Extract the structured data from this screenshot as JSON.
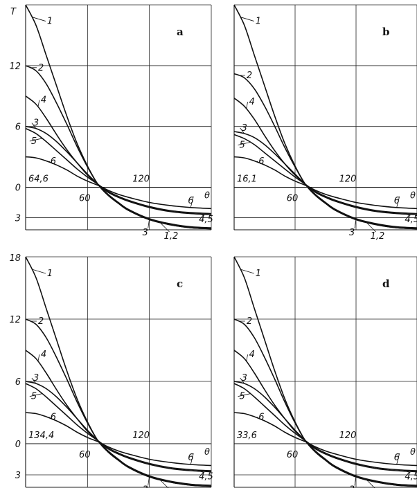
{
  "chart_data": [
    {
      "type": "line",
      "panel_label": "a",
      "y_axis_symbol": "T",
      "x_axis_symbol": "θ",
      "corner_value": "64,6",
      "x_ticks": [
        {
          "value": 60,
          "label": "60"
        },
        {
          "value": 120,
          "label": "120"
        }
      ],
      "y_ticks": [
        {
          "value": 12,
          "label": "12"
        },
        {
          "value": 6,
          "label": "6"
        },
        {
          "value": 0,
          "label": "0"
        },
        {
          "value": -3,
          "label": "3"
        }
      ],
      "xlim": [
        0,
        180
      ],
      "ylim": [
        -4.2,
        18
      ],
      "grid": true,
      "series": [
        {
          "name": "1",
          "x": [
            0,
            10,
            20,
            30,
            40,
            50,
            60,
            70,
            80,
            90,
            100,
            120,
            140,
            160,
            180
          ],
          "y": [
            18,
            16,
            13,
            10,
            7,
            4.3,
            2.1,
            0.3,
            -0.8,
            -1.6,
            -2.3,
            -3.2,
            -3.7,
            -4.0,
            -4.1
          ]
        },
        {
          "name": "2",
          "x": [
            0,
            10,
            20,
            30,
            40,
            50,
            60,
            70,
            80,
            90,
            100,
            120,
            140,
            160,
            180
          ],
          "y": [
            12,
            11.5,
            10.2,
            8.3,
            6.2,
            4.0,
            2.0,
            0.3,
            -0.8,
            -1.6,
            -2.3,
            -3.2,
            -3.7,
            -4.0,
            -4.1
          ]
        },
        {
          "name": "3",
          "x": [
            0,
            10,
            20,
            30,
            40,
            50,
            60,
            70,
            80,
            90,
            100,
            120,
            140,
            160,
            180
          ],
          "y": [
            6,
            5.8,
            5.3,
            4.5,
            3.5,
            2.4,
            1.3,
            0.3,
            -0.7,
            -1.5,
            -2.2,
            -3.1,
            -3.6,
            -3.9,
            -4.0
          ]
        },
        {
          "name": "4",
          "x": [
            0,
            10,
            20,
            30,
            40,
            50,
            60,
            70,
            80,
            90,
            100,
            120,
            140,
            160,
            180
          ],
          "y": [
            9,
            8.2,
            6.8,
            5.2,
            3.7,
            2.4,
            1.2,
            0.3,
            -0.5,
            -1.0,
            -1.4,
            -2.0,
            -2.4,
            -2.6,
            -2.7
          ]
        },
        {
          "name": "5",
          "x": [
            0,
            10,
            20,
            30,
            40,
            50,
            60,
            70,
            80,
            90,
            100,
            120,
            140,
            160,
            180
          ],
          "y": [
            5.8,
            5.3,
            4.5,
            3.6,
            2.7,
            1.8,
            1.0,
            0.3,
            -0.4,
            -0.9,
            -1.3,
            -1.9,
            -2.3,
            -2.5,
            -2.6
          ]
        },
        {
          "name": "6",
          "x": [
            0,
            10,
            20,
            30,
            40,
            50,
            60,
            70,
            80,
            90,
            100,
            120,
            140,
            160,
            180
          ],
          "y": [
            3,
            2.9,
            2.6,
            2.2,
            1.7,
            1.1,
            0.6,
            0.2,
            -0.3,
            -0.7,
            -1.0,
            -1.5,
            -1.8,
            -2.0,
            -2.1
          ]
        }
      ]
    },
    {
      "type": "line",
      "panel_label": "b",
      "y_axis_symbol": "",
      "x_axis_symbol": "θ",
      "corner_value": "16,1",
      "x_ticks": [
        {
          "value": 60,
          "label": "60"
        },
        {
          "value": 120,
          "label": "120"
        }
      ],
      "y_ticks": [],
      "xlim": [
        0,
        180
      ],
      "ylim": [
        -4.2,
        18
      ],
      "grid": true,
      "series": [
        {
          "name": "1",
          "x": [
            0,
            10,
            20,
            30,
            40,
            50,
            60,
            70,
            80,
            90,
            100,
            120,
            140,
            160,
            180
          ],
          "y": [
            18,
            16,
            13,
            10,
            7,
            4.3,
            2.1,
            0.3,
            -0.8,
            -1.6,
            -2.3,
            -3.2,
            -3.7,
            -4.0,
            -4.1
          ]
        },
        {
          "name": "2",
          "x": [
            0,
            10,
            20,
            30,
            40,
            50,
            60,
            70,
            80,
            90,
            100,
            120,
            140,
            160,
            180
          ],
          "y": [
            11.2,
            10.8,
            9.7,
            8.0,
            6.0,
            3.9,
            2.0,
            0.3,
            -0.8,
            -1.6,
            -2.3,
            -3.2,
            -3.7,
            -4.0,
            -4.1
          ]
        },
        {
          "name": "3",
          "x": [
            0,
            10,
            20,
            30,
            40,
            50,
            60,
            70,
            80,
            90,
            100,
            120,
            140,
            160,
            180
          ],
          "y": [
            5.5,
            5.3,
            4.9,
            4.2,
            3.3,
            2.3,
            1.3,
            0.3,
            -0.7,
            -1.5,
            -2.2,
            -3.1,
            -3.6,
            -3.9,
            -4.0
          ]
        },
        {
          "name": "4",
          "x": [
            0,
            10,
            20,
            30,
            40,
            50,
            60,
            70,
            80,
            90,
            100,
            120,
            140,
            160,
            180
          ],
          "y": [
            8.8,
            8.0,
            6.7,
            5.1,
            3.6,
            2.3,
            1.2,
            0.3,
            -0.5,
            -1.0,
            -1.4,
            -2.0,
            -2.4,
            -2.6,
            -2.7
          ]
        },
        {
          "name": "5",
          "x": [
            0,
            10,
            20,
            30,
            40,
            50,
            60,
            70,
            80,
            90,
            100,
            120,
            140,
            160,
            180
          ],
          "y": [
            5.2,
            4.8,
            4.2,
            3.4,
            2.6,
            1.8,
            1.0,
            0.3,
            -0.4,
            -0.9,
            -1.3,
            -1.9,
            -2.3,
            -2.5,
            -2.6
          ]
        },
        {
          "name": "6",
          "x": [
            0,
            10,
            20,
            30,
            40,
            50,
            60,
            70,
            80,
            90,
            100,
            120,
            140,
            160,
            180
          ],
          "y": [
            3,
            2.9,
            2.6,
            2.2,
            1.7,
            1.1,
            0.6,
            0.2,
            -0.3,
            -0.7,
            -1.0,
            -1.5,
            -1.8,
            -2.0,
            -2.1
          ]
        }
      ]
    },
    {
      "type": "line",
      "panel_label": "c",
      "y_axis_symbol": "",
      "x_axis_symbol": "θ",
      "corner_value": "134,4",
      "x_ticks": [
        {
          "value": 60,
          "label": "60"
        },
        {
          "value": 120,
          "label": "120"
        }
      ],
      "y_ticks": [
        {
          "value": 18,
          "label": "18"
        },
        {
          "value": 12,
          "label": "12"
        },
        {
          "value": 6,
          "label": "6"
        },
        {
          "value": 0,
          "label": "0"
        },
        {
          "value": -3,
          "label": "3"
        }
      ],
      "xlim": [
        0,
        180
      ],
      "ylim": [
        -4.2,
        18
      ],
      "grid": true,
      "series": [
        {
          "name": "1",
          "x": [
            0,
            10,
            20,
            30,
            40,
            50,
            60,
            70,
            80,
            90,
            100,
            120,
            140,
            160,
            180
          ],
          "y": [
            18,
            16,
            13,
            10,
            7,
            4.3,
            2.1,
            0.3,
            -0.8,
            -1.6,
            -2.3,
            -3.2,
            -3.7,
            -4.0,
            -4.1
          ]
        },
        {
          "name": "2",
          "x": [
            0,
            10,
            20,
            30,
            40,
            50,
            60,
            70,
            80,
            90,
            100,
            120,
            140,
            160,
            180
          ],
          "y": [
            12,
            11.5,
            10.2,
            8.3,
            6.2,
            4.0,
            2.0,
            0.3,
            -0.8,
            -1.6,
            -2.3,
            -3.2,
            -3.7,
            -4.0,
            -4.1
          ]
        },
        {
          "name": "3",
          "x": [
            0,
            10,
            20,
            30,
            40,
            50,
            60,
            70,
            80,
            90,
            100,
            120,
            140,
            160,
            180
          ],
          "y": [
            6,
            5.8,
            5.3,
            4.5,
            3.5,
            2.4,
            1.3,
            0.3,
            -0.7,
            -1.5,
            -2.2,
            -3.1,
            -3.6,
            -3.9,
            -4.0
          ]
        },
        {
          "name": "4",
          "x": [
            0,
            10,
            20,
            30,
            40,
            50,
            60,
            70,
            80,
            90,
            100,
            120,
            140,
            160,
            180
          ],
          "y": [
            9,
            8.2,
            6.8,
            5.2,
            3.7,
            2.4,
            1.2,
            0.3,
            -0.5,
            -1.0,
            -1.4,
            -2.0,
            -2.4,
            -2.6,
            -2.7
          ]
        },
        {
          "name": "5",
          "x": [
            0,
            10,
            20,
            30,
            40,
            50,
            60,
            70,
            80,
            90,
            100,
            120,
            140,
            160,
            180
          ],
          "y": [
            5.8,
            5.3,
            4.5,
            3.6,
            2.7,
            1.8,
            1.0,
            0.3,
            -0.4,
            -0.9,
            -1.3,
            -1.9,
            -2.3,
            -2.5,
            -2.6
          ]
        },
        {
          "name": "6",
          "x": [
            0,
            10,
            20,
            30,
            40,
            50,
            60,
            70,
            80,
            90,
            100,
            120,
            140,
            160,
            180
          ],
          "y": [
            3,
            2.9,
            2.6,
            2.2,
            1.7,
            1.1,
            0.6,
            0.2,
            -0.3,
            -0.7,
            -1.0,
            -1.5,
            -1.8,
            -2.0,
            -2.1
          ]
        }
      ]
    },
    {
      "type": "line",
      "panel_label": "d",
      "y_axis_symbol": "",
      "x_axis_symbol": "θ",
      "corner_value": "33,6",
      "x_ticks": [
        {
          "value": 60,
          "label": "60"
        },
        {
          "value": 120,
          "label": "120"
        }
      ],
      "y_ticks": [],
      "xlim": [
        0,
        180
      ],
      "ylim": [
        -4.2,
        18
      ],
      "grid": true,
      "series": [
        {
          "name": "1",
          "x": [
            0,
            10,
            20,
            30,
            40,
            50,
            60,
            70,
            80,
            90,
            100,
            120,
            140,
            160,
            180
          ],
          "y": [
            18,
            16,
            13,
            10,
            7,
            4.3,
            2.1,
            0.3,
            -0.8,
            -1.6,
            -2.3,
            -3.2,
            -3.7,
            -4.0,
            -4.1
          ]
        },
        {
          "name": "2",
          "x": [
            0,
            10,
            20,
            30,
            40,
            50,
            60,
            70,
            80,
            90,
            100,
            120,
            140,
            160,
            180
          ],
          "y": [
            12,
            11.5,
            10.2,
            8.3,
            6.2,
            4.0,
            2.0,
            0.3,
            -0.8,
            -1.6,
            -2.3,
            -3.2,
            -3.7,
            -4.0,
            -4.1
          ]
        },
        {
          "name": "3",
          "x": [
            0,
            10,
            20,
            30,
            40,
            50,
            60,
            70,
            80,
            90,
            100,
            120,
            140,
            160,
            180
          ],
          "y": [
            6,
            5.8,
            5.3,
            4.5,
            3.5,
            2.4,
            1.3,
            0.3,
            -0.7,
            -1.5,
            -2.2,
            -3.1,
            -3.6,
            -3.9,
            -4.0
          ]
        },
        {
          "name": "4",
          "x": [
            0,
            10,
            20,
            30,
            40,
            50,
            60,
            70,
            80,
            90,
            100,
            120,
            140,
            160,
            180
          ],
          "y": [
            9,
            8.2,
            6.8,
            5.2,
            3.7,
            2.4,
            1.2,
            0.3,
            -0.5,
            -1.0,
            -1.4,
            -2.0,
            -2.4,
            -2.6,
            -2.7
          ]
        },
        {
          "name": "5",
          "x": [
            0,
            10,
            20,
            30,
            40,
            50,
            60,
            70,
            80,
            90,
            100,
            120,
            140,
            160,
            180
          ],
          "y": [
            5.8,
            5.3,
            4.5,
            3.6,
            2.7,
            1.8,
            1.0,
            0.3,
            -0.4,
            -0.9,
            -1.3,
            -1.9,
            -2.3,
            -2.5,
            -2.6
          ]
        },
        {
          "name": "6",
          "x": [
            0,
            10,
            20,
            30,
            40,
            50,
            60,
            70,
            80,
            90,
            100,
            120,
            140,
            160,
            180
          ],
          "y": [
            3,
            2.9,
            2.6,
            2.2,
            1.7,
            1.1,
            0.6,
            0.2,
            -0.3,
            -0.7,
            -1.0,
            -1.5,
            -1.8,
            -2.0,
            -2.1
          ]
        }
      ]
    }
  ]
}
